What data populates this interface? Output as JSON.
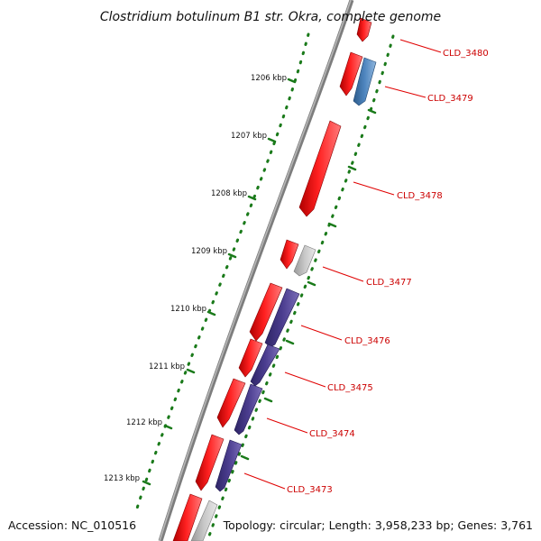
{
  "title": "Clostridium botulinum B1 str. Okra, complete genome",
  "footer": {
    "accession": "Accession: NC_010516",
    "topology": "Topology: circular; Length: 3,958,233 bp; Genes: 3,761"
  },
  "ruler": [
    "1206 kbp",
    "1207 kbp",
    "1208 kbp",
    "1209 kbp",
    "1210 kbp",
    "1211 kbp",
    "1212 kbp",
    "1213 kbp"
  ],
  "genes": [
    "CLD_3480",
    "CLD_3479",
    "CLD_3478",
    "CLD_3477",
    "CLD_3476",
    "CLD_3475",
    "CLD_3474",
    "CLD_3473"
  ],
  "colors": {
    "backbone": "#8a8a8a",
    "red_feature": "#ff1a1a",
    "blue_feature": "#4a7fb5",
    "purple_feature": "#4b3d8f",
    "gray_feature": "#c0c0c0",
    "tick": "#1a7a1a",
    "label": "#cc0000"
  }
}
